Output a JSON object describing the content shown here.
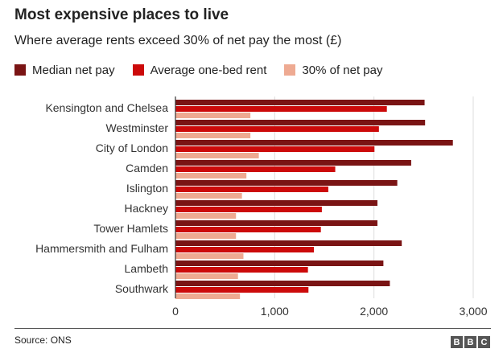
{
  "header": {
    "title": "Most expensive places to live",
    "subtitle": "Where average rents exceed 30% of net pay the most (£)"
  },
  "footer": {
    "source": "Source: ONS",
    "logo_letters": [
      "B",
      "B",
      "C"
    ]
  },
  "chart_data": {
    "type": "bar",
    "orientation": "horizontal",
    "title": "Most expensive places to live",
    "subtitle": "Where average rents exceed 30% of net pay the most (£)",
    "categories": [
      "Kensington and Chelsea",
      "Westminster",
      "City of London",
      "Camden",
      "Islington",
      "Hackney",
      "Tower Hamlets",
      "Hammersmith and Fulham",
      "Lambeth",
      "Southwark"
    ],
    "series": [
      {
        "name": "Median net pay",
        "color": "#7a1414",
        "values": [
          2510,
          2515,
          2795,
          2375,
          2235,
          2035,
          2035,
          2280,
          2095,
          2160
        ]
      },
      {
        "name": "Average one-bed rent",
        "color": "#cc0a0a",
        "values": [
          2130,
          2050,
          2005,
          1610,
          1540,
          1475,
          1465,
          1395,
          1335,
          1340
        ]
      },
      {
        "name": "30% of net pay",
        "color": "#eeaa92",
        "values": [
          755,
          755,
          840,
          715,
          670,
          610,
          610,
          685,
          630,
          650
        ]
      }
    ],
    "xlim": [
      0,
      3000
    ],
    "xticks": [
      0,
      1000,
      2000,
      3000
    ],
    "xtick_labels": [
      "0",
      "1,000",
      "2,000",
      "3,000"
    ],
    "grid": "vertical",
    "legend_position": "top-left"
  }
}
